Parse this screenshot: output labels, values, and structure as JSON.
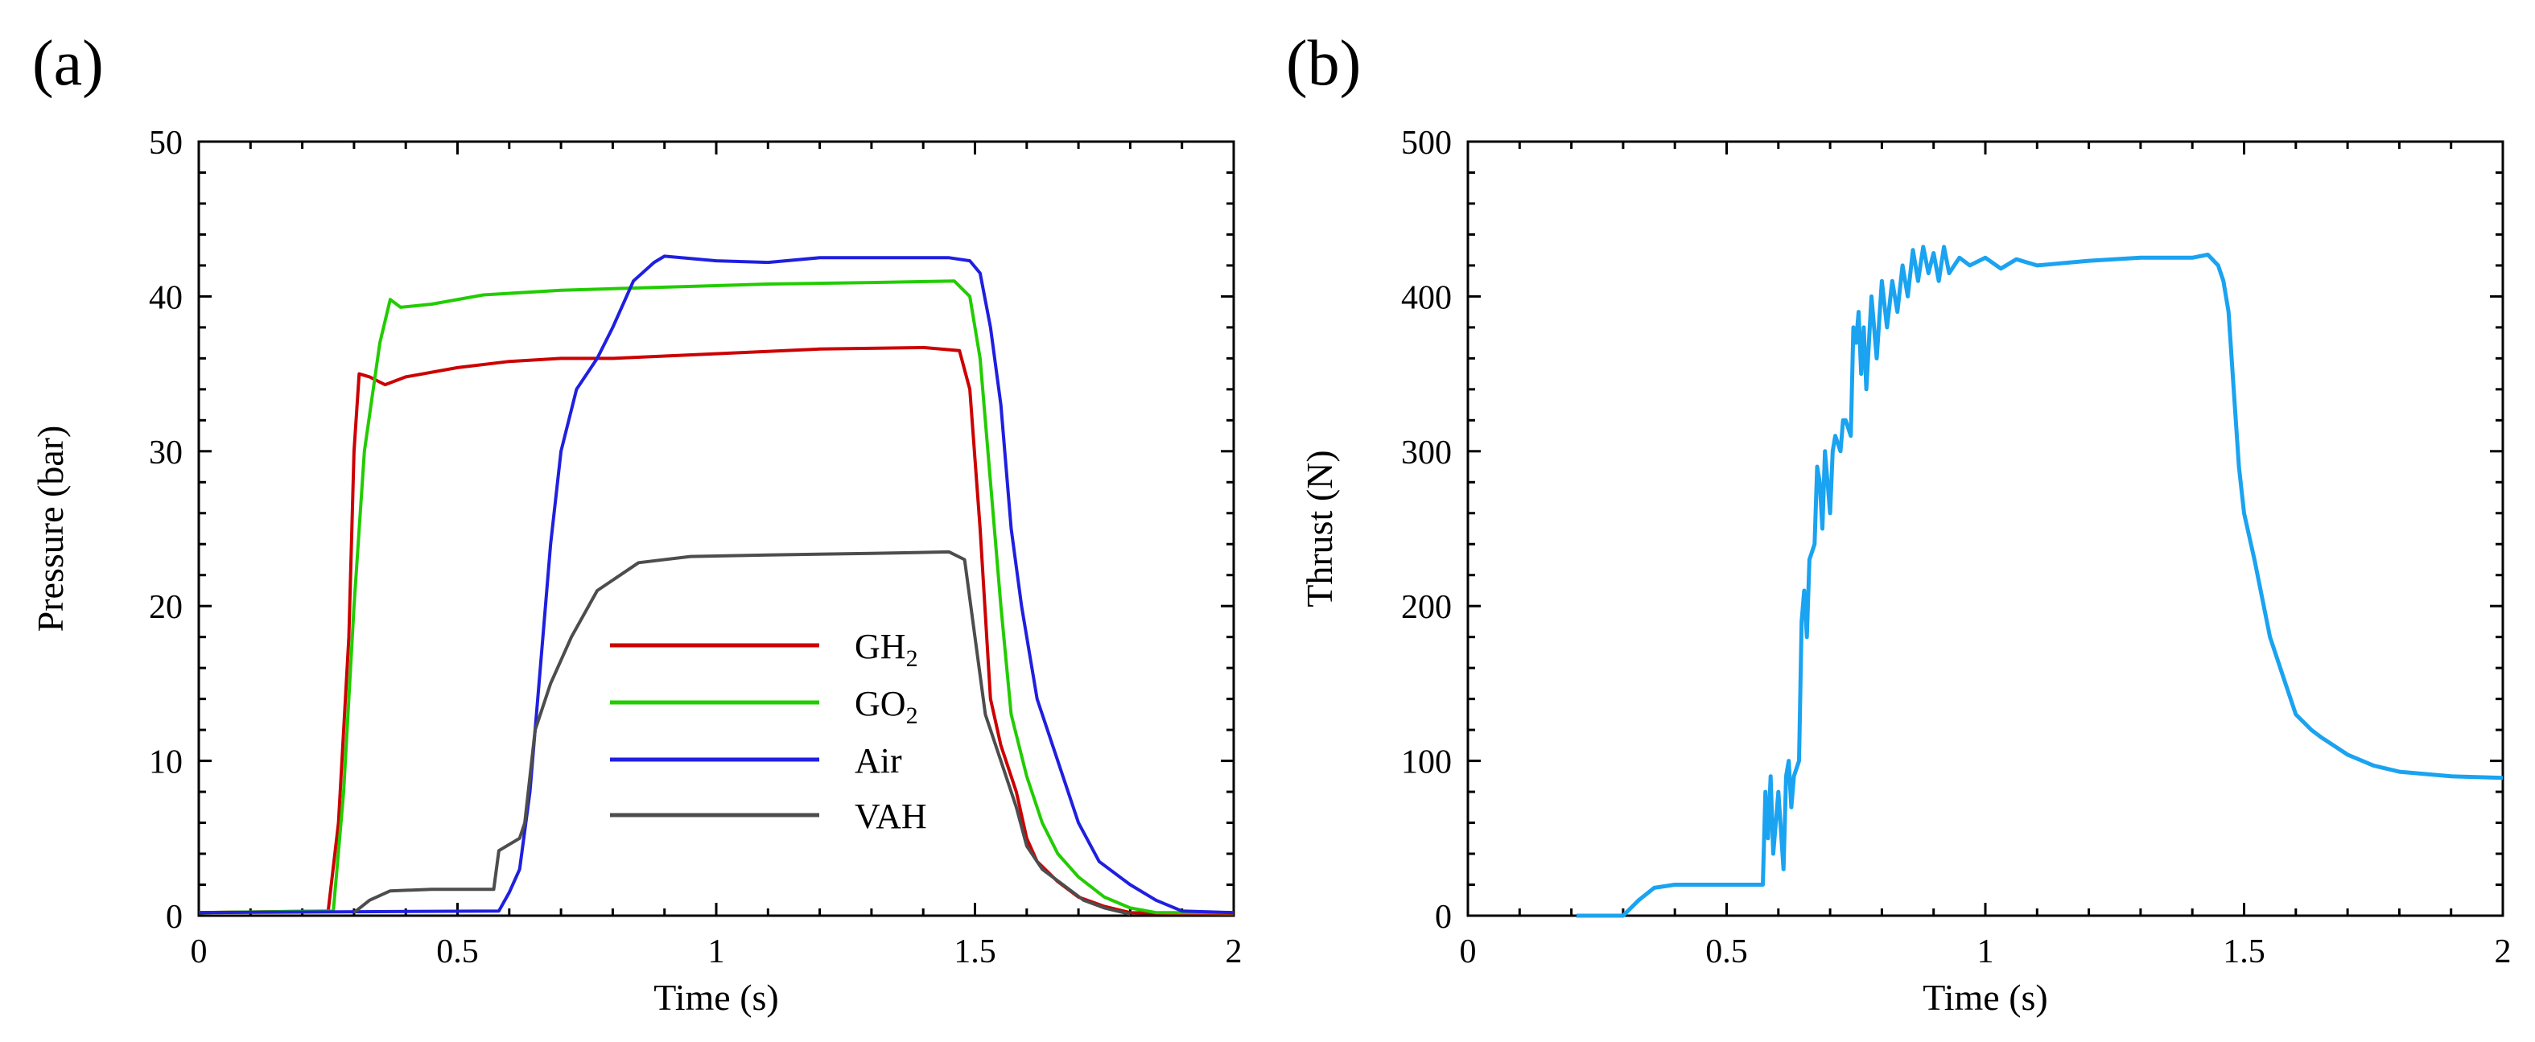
{
  "chart_data": [
    {
      "type": "line",
      "panel_label": "(a)",
      "xlabel": "Time (s)",
      "ylabel": "Pressure (bar)",
      "xlim": [
        0,
        2
      ],
      "ylim": [
        0,
        50
      ],
      "xticks": [
        0,
        0.5,
        1,
        1.5,
        2
      ],
      "xtick_labels": [
        "0",
        "0.5",
        "1",
        "1.5",
        "2"
      ],
      "yticks": [
        0,
        10,
        20,
        30,
        40,
        50
      ],
      "ytick_labels": [
        "0",
        "10",
        "20",
        "30",
        "40",
        "50"
      ],
      "grid": false,
      "legend_position": "center",
      "series": [
        {
          "name": "GH2",
          "label_main": "GH",
          "label_sub": "2",
          "color": "#cc0000",
          "points": [
            [
              0,
              0.2
            ],
            [
              0.25,
              0.3
            ],
            [
              0.27,
              6
            ],
            [
              0.29,
              18
            ],
            [
              0.3,
              30
            ],
            [
              0.31,
              35
            ],
            [
              0.33,
              34.8
            ],
            [
              0.36,
              34.3
            ],
            [
              0.4,
              34.8
            ],
            [
              0.5,
              35.4
            ],
            [
              0.6,
              35.8
            ],
            [
              0.7,
              36
            ],
            [
              0.8,
              36
            ],
            [
              1.0,
              36.3
            ],
            [
              1.2,
              36.6
            ],
            [
              1.4,
              36.7
            ],
            [
              1.47,
              36.5
            ],
            [
              1.49,
              34
            ],
            [
              1.51,
              25
            ],
            [
              1.53,
              14
            ],
            [
              1.55,
              11
            ],
            [
              1.58,
              8
            ],
            [
              1.6,
              5
            ],
            [
              1.62,
              3.5
            ],
            [
              1.66,
              2.2
            ],
            [
              1.7,
              1.2
            ],
            [
              1.75,
              0.6
            ],
            [
              1.8,
              0.2
            ],
            [
              2.0,
              0.1
            ]
          ]
        },
        {
          "name": "GO2",
          "label_main": "GO",
          "label_sub": "2",
          "color": "#22cc00",
          "points": [
            [
              0,
              0.2
            ],
            [
              0.26,
              0.3
            ],
            [
              0.28,
              8
            ],
            [
              0.3,
              20
            ],
            [
              0.32,
              30
            ],
            [
              0.35,
              37
            ],
            [
              0.37,
              39.8
            ],
            [
              0.39,
              39.3
            ],
            [
              0.45,
              39.5
            ],
            [
              0.55,
              40.1
            ],
            [
              0.7,
              40.4
            ],
            [
              0.9,
              40.6
            ],
            [
              1.1,
              40.8
            ],
            [
              1.3,
              40.9
            ],
            [
              1.46,
              41
            ],
            [
              1.49,
              40
            ],
            [
              1.51,
              36
            ],
            [
              1.53,
              28
            ],
            [
              1.55,
              20
            ],
            [
              1.57,
              13
            ],
            [
              1.6,
              9
            ],
            [
              1.63,
              6
            ],
            [
              1.66,
              4
            ],
            [
              1.7,
              2.5
            ],
            [
              1.75,
              1.2
            ],
            [
              1.8,
              0.5
            ],
            [
              1.85,
              0.2
            ],
            [
              2.0,
              0.2
            ]
          ]
        },
        {
          "name": "Air",
          "label_main": "Air",
          "label_sub": "",
          "color": "#1f1fe0",
          "points": [
            [
              0,
              0.2
            ],
            [
              0.58,
              0.3
            ],
            [
              0.6,
              1.5
            ],
            [
              0.62,
              3
            ],
            [
              0.64,
              8
            ],
            [
              0.66,
              16
            ],
            [
              0.68,
              24
            ],
            [
              0.7,
              30
            ],
            [
              0.73,
              34
            ],
            [
              0.77,
              36
            ],
            [
              0.8,
              38
            ],
            [
              0.84,
              41
            ],
            [
              0.88,
              42.2
            ],
            [
              0.9,
              42.6
            ],
            [
              1.0,
              42.3
            ],
            [
              1.1,
              42.2
            ],
            [
              1.2,
              42.5
            ],
            [
              1.3,
              42.5
            ],
            [
              1.45,
              42.5
            ],
            [
              1.49,
              42.3
            ],
            [
              1.51,
              41.5
            ],
            [
              1.53,
              38
            ],
            [
              1.55,
              33
            ],
            [
              1.57,
              25
            ],
            [
              1.59,
              20
            ],
            [
              1.62,
              14
            ],
            [
              1.66,
              10
            ],
            [
              1.7,
              6
            ],
            [
              1.74,
              3.5
            ],
            [
              1.8,
              2
            ],
            [
              1.85,
              1
            ],
            [
              1.9,
              0.3
            ],
            [
              2.0,
              0.2
            ]
          ]
        },
        {
          "name": "VAH",
          "label_main": "VAH",
          "label_sub": "",
          "color": "#4d4d4d",
          "points": [
            [
              0.3,
              0.2
            ],
            [
              0.33,
              1
            ],
            [
              0.37,
              1.6
            ],
            [
              0.45,
              1.7
            ],
            [
              0.57,
              1.7
            ],
            [
              0.58,
              4.2
            ],
            [
              0.62,
              5
            ],
            [
              0.63,
              6
            ],
            [
              0.65,
              12
            ],
            [
              0.68,
              15
            ],
            [
              0.72,
              18
            ],
            [
              0.77,
              21
            ],
            [
              0.85,
              22.8
            ],
            [
              0.95,
              23.2
            ],
            [
              1.1,
              23.3
            ],
            [
              1.3,
              23.4
            ],
            [
              1.45,
              23.5
            ],
            [
              1.48,
              23
            ],
            [
              1.5,
              18
            ],
            [
              1.52,
              13
            ],
            [
              1.55,
              10
            ],
            [
              1.58,
              7
            ],
            [
              1.6,
              4.5
            ],
            [
              1.63,
              3
            ],
            [
              1.67,
              2
            ],
            [
              1.71,
              1
            ],
            [
              1.75,
              0.5
            ],
            [
              1.8,
              0.1
            ]
          ]
        }
      ]
    },
    {
      "type": "line",
      "panel_label": "(b)",
      "xlabel": "Time (s)",
      "ylabel": "Thrust (N)",
      "xlim": [
        0,
        2
      ],
      "ylim": [
        0,
        500
      ],
      "xticks": [
        0,
        0.5,
        1,
        1.5,
        2
      ],
      "xtick_labels": [
        "0",
        "0.5",
        "1",
        "1.5",
        "2"
      ],
      "yticks": [
        0,
        100,
        200,
        300,
        400,
        500
      ],
      "ytick_labels": [
        "0",
        "100",
        "200",
        "300",
        "400",
        "500"
      ],
      "grid": false,
      "series": [
        {
          "name": "Thrust",
          "color": "#1aa3f0",
          "points": [
            [
              0.21,
              0
            ],
            [
              0.3,
              0
            ],
            [
              0.33,
              10
            ],
            [
              0.36,
              18
            ],
            [
              0.4,
              20
            ],
            [
              0.5,
              20
            ],
            [
              0.57,
              20
            ],
            [
              0.575,
              80
            ],
            [
              0.58,
              50
            ],
            [
              0.585,
              90
            ],
            [
              0.59,
              40
            ],
            [
              0.6,
              80
            ],
            [
              0.61,
              30
            ],
            [
              0.615,
              90
            ],
            [
              0.62,
              100
            ],
            [
              0.625,
              70
            ],
            [
              0.63,
              90
            ],
            [
              0.64,
              100
            ],
            [
              0.645,
              190
            ],
            [
              0.65,
              210
            ],
            [
              0.655,
              180
            ],
            [
              0.66,
              230
            ],
            [
              0.67,
              240
            ],
            [
              0.675,
              290
            ],
            [
              0.68,
              280
            ],
            [
              0.685,
              250
            ],
            [
              0.69,
              300
            ],
            [
              0.7,
              260
            ],
            [
              0.705,
              300
            ],
            [
              0.71,
              310
            ],
            [
              0.72,
              300
            ],
            [
              0.725,
              320
            ],
            [
              0.73,
              320
            ],
            [
              0.74,
              310
            ],
            [
              0.745,
              380
            ],
            [
              0.75,
              370
            ],
            [
              0.755,
              390
            ],
            [
              0.76,
              350
            ],
            [
              0.765,
              380
            ],
            [
              0.77,
              340
            ],
            [
              0.78,
              400
            ],
            [
              0.79,
              360
            ],
            [
              0.8,
              410
            ],
            [
              0.81,
              380
            ],
            [
              0.82,
              410
            ],
            [
              0.83,
              390
            ],
            [
              0.84,
              420
            ],
            [
              0.85,
              400
            ],
            [
              0.86,
              430
            ],
            [
              0.87,
              410
            ],
            [
              0.88,
              432
            ],
            [
              0.89,
              415
            ],
            [
              0.9,
              428
            ],
            [
              0.91,
              410
            ],
            [
              0.92,
              432
            ],
            [
              0.93,
              415
            ],
            [
              0.95,
              425
            ],
            [
              0.97,
              420
            ],
            [
              1.0,
              425
            ],
            [
              1.03,
              418
            ],
            [
              1.06,
              424
            ],
            [
              1.1,
              420
            ],
            [
              1.2,
              423
            ],
            [
              1.3,
              425
            ],
            [
              1.4,
              425
            ],
            [
              1.43,
              427
            ],
            [
              1.45,
              420
            ],
            [
              1.46,
              410
            ],
            [
              1.47,
              390
            ],
            [
              1.48,
              340
            ],
            [
              1.49,
              290
            ],
            [
              1.5,
              260
            ],
            [
              1.52,
              230
            ],
            [
              1.55,
              180
            ],
            [
              1.58,
              150
            ],
            [
              1.6,
              130
            ],
            [
              1.63,
              120
            ],
            [
              1.65,
              115
            ],
            [
              1.7,
              104
            ],
            [
              1.75,
              97
            ],
            [
              1.8,
              93
            ],
            [
              1.9,
              90
            ],
            [
              2.0,
              89
            ]
          ]
        }
      ]
    }
  ]
}
